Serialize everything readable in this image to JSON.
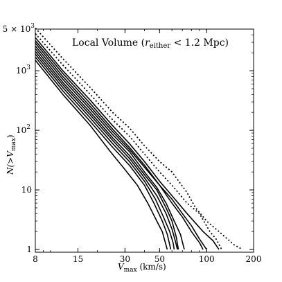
{
  "chart_data": {
    "type": "line",
    "title_parts": {
      "prefix": "Local Volume (",
      "var": "r",
      "sub": "either",
      "suffix": " < 1.2 Mpc)"
    },
    "xlabel_parts": {
      "var": "V",
      "sub": "max",
      "suffix": " (km/s)"
    },
    "ylabel_parts": {
      "prefix": "N(>",
      "var": "V",
      "sub": "max",
      "suffix": ")"
    },
    "x_scale": "log",
    "y_scale": "log",
    "xlim": [
      8,
      200
    ],
    "ylim": [
      0.9,
      5000
    ],
    "x_ticks": [
      {
        "value": 8,
        "label": "8"
      },
      {
        "value": 15,
        "label": "15"
      },
      {
        "value": 30,
        "label": "30"
      },
      {
        "value": 50,
        "label": "50"
      },
      {
        "value": 100,
        "label": "100"
      },
      {
        "value": 200,
        "label": "200"
      }
    ],
    "y_ticks": [
      {
        "value": 1,
        "label": "1"
      },
      {
        "value": 10,
        "label": "10"
      },
      {
        "value": 100,
        "label": "10",
        "sup": "2"
      },
      {
        "value": 1000,
        "label": "10",
        "sup": "3"
      },
      {
        "value": 5000,
        "label": "5 × 10",
        "sup": "3"
      }
    ],
    "series": [
      {
        "style": "dotted",
        "points": [
          [
            8,
            5200
          ],
          [
            12,
            1600
          ],
          [
            18,
            520
          ],
          [
            25,
            200
          ],
          [
            32,
            110
          ],
          [
            40,
            55
          ],
          [
            50,
            30
          ],
          [
            60,
            20
          ],
          [
            75,
            9
          ],
          [
            85,
            5
          ],
          [
            100,
            3
          ],
          [
            120,
            2
          ],
          [
            150,
            1.2
          ],
          [
            170,
            1
          ]
        ]
      },
      {
        "style": "dotted",
        "points": [
          [
            8,
            4200
          ],
          [
            12,
            1250
          ],
          [
            18,
            400
          ],
          [
            25,
            150
          ],
          [
            32,
            80
          ],
          [
            40,
            40
          ],
          [
            50,
            20
          ],
          [
            60,
            12
          ],
          [
            75,
            6
          ],
          [
            90,
            4
          ],
          [
            105,
            2
          ],
          [
            115,
            1.5
          ],
          [
            125,
            1
          ]
        ]
      },
      {
        "style": "solid",
        "points": [
          [
            8,
            3600
          ],
          [
            12,
            1000
          ],
          [
            18,
            320
          ],
          [
            25,
            120
          ],
          [
            32,
            60
          ],
          [
            40,
            30
          ],
          [
            50,
            14
          ],
          [
            60,
            8
          ],
          [
            75,
            4
          ],
          [
            95,
            2
          ],
          [
            110,
            1.4
          ],
          [
            120,
            1
          ]
        ]
      },
      {
        "style": "solid",
        "points": [
          [
            8,
            3200
          ],
          [
            12,
            900
          ],
          [
            18,
            280
          ],
          [
            25,
            105
          ],
          [
            32,
            52
          ],
          [
            40,
            26
          ],
          [
            50,
            12
          ],
          [
            60,
            7
          ],
          [
            70,
            4
          ],
          [
            80,
            2.5
          ],
          [
            90,
            1.5
          ],
          [
            100,
            1
          ]
        ]
      },
      {
        "style": "solid",
        "points": [
          [
            8,
            2900
          ],
          [
            12,
            800
          ],
          [
            18,
            250
          ],
          [
            25,
            95
          ],
          [
            32,
            48
          ],
          [
            40,
            24
          ],
          [
            50,
            12
          ],
          [
            60,
            6
          ],
          [
            70,
            3.5
          ],
          [
            80,
            2
          ],
          [
            90,
            1.3
          ],
          [
            95,
            1
          ]
        ]
      },
      {
        "style": "solid",
        "points": [
          [
            8,
            2600
          ],
          [
            12,
            720
          ],
          [
            18,
            225
          ],
          [
            25,
            85
          ],
          [
            32,
            44
          ],
          [
            40,
            20
          ],
          [
            48,
            11
          ],
          [
            55,
            6
          ],
          [
            62,
            3
          ],
          [
            68,
            1.8
          ],
          [
            72,
            1
          ]
        ]
      },
      {
        "style": "solid",
        "points": [
          [
            8,
            2350
          ],
          [
            12,
            640
          ],
          [
            18,
            200
          ],
          [
            25,
            75
          ],
          [
            32,
            38
          ],
          [
            40,
            18
          ],
          [
            48,
            10
          ],
          [
            55,
            5
          ],
          [
            60,
            3
          ],
          [
            64,
            1.6
          ],
          [
            66,
            1
          ]
        ]
      },
      {
        "style": "solid",
        "points": [
          [
            8,
            2100
          ],
          [
            12,
            580
          ],
          [
            18,
            180
          ],
          [
            25,
            68
          ],
          [
            32,
            34
          ],
          [
            40,
            16
          ],
          [
            48,
            8
          ],
          [
            55,
            4
          ],
          [
            60,
            2.2
          ],
          [
            63,
            1.4
          ],
          [
            65,
            1
          ]
        ]
      },
      {
        "style": "solid",
        "points": [
          [
            8,
            1900
          ],
          [
            12,
            520
          ],
          [
            18,
            160
          ],
          [
            25,
            60
          ],
          [
            32,
            30
          ],
          [
            40,
            14
          ],
          [
            47,
            7
          ],
          [
            53,
            3.5
          ],
          [
            58,
            2
          ],
          [
            61,
            1.3
          ],
          [
            62,
            1
          ]
        ]
      },
      {
        "style": "solid",
        "points": [
          [
            8,
            1700
          ],
          [
            12,
            460
          ],
          [
            18,
            140
          ],
          [
            25,
            52
          ],
          [
            32,
            26
          ],
          [
            40,
            12
          ],
          [
            46,
            6
          ],
          [
            52,
            3
          ],
          [
            56,
            1.8
          ],
          [
            59,
            1
          ]
        ]
      },
      {
        "style": "solid",
        "points": [
          [
            8,
            1500
          ],
          [
            12,
            400
          ],
          [
            18,
            120
          ],
          [
            24,
            45
          ],
          [
            30,
            22
          ],
          [
            36,
            12
          ],
          [
            42,
            6
          ],
          [
            48,
            3
          ],
          [
            52,
            2
          ],
          [
            56,
            1
          ]
        ]
      }
    ]
  }
}
